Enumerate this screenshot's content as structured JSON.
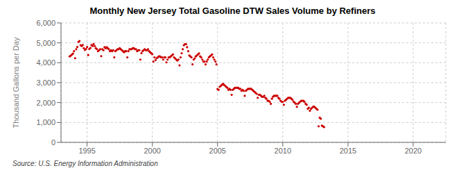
{
  "chart_data": {
    "type": "scatter",
    "title": "Monthly New Jersey Total Gasoline DTW Sales Volume by Refiners",
    "y_label": "Thousand Gallons per Day",
    "annotations": [
      "Source: U.S. Energy Information Administration"
    ],
    "color": "#cc0000",
    "marker": "circle",
    "grid": true,
    "xlim": [
      1993,
      2022.5
    ],
    "xticks": [
      1995,
      2000,
      2005,
      2010,
      2015,
      2020
    ],
    "ylim": [
      0,
      6000
    ],
    "yticks": [
      0,
      {
        "value": 1000,
        "label": "1,000"
      },
      {
        "value": 2000,
        "label": "2,000"
      },
      {
        "value": 3000,
        "label": "3,000"
      },
      {
        "value": 4000,
        "label": "4,000"
      },
      {
        "value": 5000,
        "label": "5,000"
      },
      {
        "value": 6000,
        "label": "6,000"
      }
    ],
    "x": [
      1993.6666666667,
      1993.75,
      1993.8333333333,
      1993.9166666667,
      1994,
      1994.0833333333,
      1994.1666666667,
      1994.25,
      1994.3333333333,
      1994.4166666667,
      1994.5,
      1994.5833333333,
      1994.6666666667,
      1994.75,
      1994.8333333333,
      1994.9166666667,
      1995,
      1995.0833333333,
      1995.1666666667,
      1995.25,
      1995.3333333333,
      1995.4166666667,
      1995.5,
      1995.5833333333,
      1995.6666666667,
      1995.75,
      1995.8333333333,
      1995.9166666667,
      1996,
      1996.0833333333,
      1996.1666666667,
      1996.25,
      1996.3333333333,
      1996.4166666667,
      1996.5,
      1996.5833333333,
      1996.6666666667,
      1996.75,
      1996.8333333333,
      1996.9166666667,
      1997,
      1997.0833333333,
      1997.1666666667,
      1997.25,
      1997.3333333333,
      1997.4166666667,
      1997.5,
      1997.5833333333,
      1997.6666666667,
      1997.75,
      1997.8333333333,
      1997.9166666667,
      1998,
      1998.0833333333,
      1998.1666666667,
      1998.25,
      1998.3333333333,
      1998.4166666667,
      1998.5,
      1998.5833333333,
      1998.6666666667,
      1998.75,
      1998.8333333333,
      1998.9166666667,
      1999,
      1999.0833333333,
      1999.1666666667,
      1999.25,
      1999.3333333333,
      1999.4166666667,
      1999.5,
      1999.5833333333,
      1999.6666666667,
      1999.75,
      1999.8333333333,
      1999.9166666667,
      2000,
      2000.0833333333,
      2000.1666666667,
      2000.25,
      2000.3333333333,
      2000.4166666667,
      2000.5,
      2000.5833333333,
      2000.6666666667,
      2000.75,
      2000.8333333333,
      2000.9166666667,
      2001,
      2001.0833333333,
      2001.1666666667,
      2001.25,
      2001.3333333333,
      2001.4166666667,
      2001.5,
      2001.5833333333,
      2001.6666666667,
      2001.75,
      2001.8333333333,
      2001.9166666667,
      2002,
      2002.0833333333,
      2002.1666666667,
      2002.25,
      2002.3333333333,
      2002.4166666667,
      2002.5,
      2002.5833333333,
      2002.6666666667,
      2002.75,
      2002.8333333333,
      2002.9166666667,
      2003,
      2003.0833333333,
      2003.1666666667,
      2003.25,
      2003.3333333333,
      2003.4166666667,
      2003.5,
      2003.5833333333,
      2003.6666666667,
      2003.75,
      2003.8333333333,
      2003.9166666667,
      2004,
      2004.0833333333,
      2004.1666666667,
      2004.25,
      2004.3333333333,
      2004.4166666667,
      2004.5,
      2004.5833333333,
      2004.6666666667,
      2004.75,
      2004.8333333333,
      2004.9166666667,
      2005,
      2005.0833333333,
      2005.1666666667,
      2005.25,
      2005.3333333333,
      2005.4166666667,
      2005.5,
      2005.5833333333,
      2005.6666666667,
      2005.75,
      2005.8333333333,
      2005.9166666667,
      2006,
      2006.0833333333,
      2006.1666666667,
      2006.25,
      2006.3333333333,
      2006.4166666667,
      2006.5,
      2006.5833333333,
      2006.6666666667,
      2006.75,
      2006.8333333333,
      2006.9166666667,
      2007,
      2007.0833333333,
      2007.1666666667,
      2007.25,
      2007.3333333333,
      2007.4166666667,
      2007.5,
      2007.5833333333,
      2007.6666666667,
      2007.75,
      2007.8333333333,
      2007.9166666667,
      2008,
      2008.0833333333,
      2008.1666666667,
      2008.25,
      2008.3333333333,
      2008.4166666667,
      2008.5,
      2008.5833333333,
      2008.6666666667,
      2008.75,
      2008.8333333333,
      2008.9166666667,
      2009,
      2009.0833333333,
      2009.1666666667,
      2009.25,
      2009.3333333333,
      2009.4166666667,
      2009.5,
      2009.5833333333,
      2009.6666666667,
      2009.75,
      2009.8333333333,
      2009.9166666667,
      2010,
      2010.0833333333,
      2010.1666666667,
      2010.25,
      2010.3333333333,
      2010.4166666667,
      2010.5,
      2010.5833333333,
      2010.6666666667,
      2010.75,
      2010.8333333333,
      2010.9166666667,
      2011,
      2011.0833333333,
      2011.1666666667,
      2011.25,
      2011.3333333333,
      2011.4166666667,
      2011.5,
      2011.5833333333,
      2011.6666666667,
      2011.75,
      2011.8333333333,
      2011.9166666667,
      2012,
      2012.0833333333,
      2012.1666666667,
      2012.25,
      2012.3333333333,
      2012.4166666667,
      2012.5,
      2012.5833333333,
      2012.6666666667,
      2012.75,
      2012.8333333333,
      2012.9166666667,
      2013,
      2013.0833333333,
      2013.1666666667
    ],
    "values": [
      4320,
      4360,
      4410,
      4460,
      4580,
      4230,
      4680,
      4790,
      5050,
      5090,
      4880,
      4840,
      4890,
      4730,
      4640,
      4690,
      4790,
      4390,
      4690,
      4740,
      4890,
      4840,
      4940,
      4840,
      4730,
      4690,
      4580,
      4630,
      4680,
      4330,
      4680,
      4630,
      4780,
      4730,
      4780,
      4730,
      4680,
      4580,
      4630,
      4580,
      4630,
      4270,
      4580,
      4630,
      4680,
      4680,
      4730,
      4680,
      4630,
      4580,
      4530,
      4580,
      4580,
      4270,
      4580,
      4680,
      4680,
      4680,
      4730,
      4730,
      4680,
      4680,
      4580,
      4630,
      4630,
      4160,
      4480,
      4580,
      4630,
      4680,
      4630,
      4630,
      4680,
      4580,
      4530,
      4480,
      4430,
      4060,
      4270,
      4130,
      4230,
      4270,
      4320,
      4320,
      4270,
      4270,
      4160,
      4270,
      4270,
      4020,
      4160,
      4270,
      4270,
      4320,
      4370,
      4420,
      4270,
      4220,
      4160,
      4110,
      4160,
      3870,
      4270,
      4480,
      4680,
      4880,
      4930,
      4930,
      4780,
      4580,
      4370,
      4320,
      4270,
      3920,
      4160,
      4220,
      4320,
      4370,
      4420,
      4470,
      4320,
      4270,
      4160,
      4060,
      4060,
      3920,
      4060,
      4160,
      4270,
      4320,
      4370,
      4420,
      4270,
      4160,
      4060,
      3920,
      2680,
      2640,
      2790,
      2840,
      2890,
      2940,
      2890,
      2840,
      2790,
      2740,
      2640,
      2690,
      2640,
      2390,
      2640,
      2690,
      2740,
      2740,
      2740,
      2740,
      2690,
      2690,
      2590,
      2640,
      2590,
      2340,
      2590,
      2640,
      2690,
      2690,
      2690,
      2690,
      2640,
      2590,
      2540,
      2490,
      2440,
      2240,
      2390,
      2390,
      2340,
      2290,
      2290,
      2340,
      2240,
      2190,
      2090,
      2090,
      2040,
      1940,
      2190,
      2290,
      2340,
      2340,
      2340,
      2340,
      2240,
      2190,
      2090,
      2040,
      2040,
      1890,
      2090,
      2140,
      2190,
      2240,
      2240,
      2240,
      2190,
      2140,
      2040,
      1990,
      1940,
      1790,
      1940,
      1990,
      2040,
      2090,
      2090,
      2090,
      2040,
      1940,
      1890,
      1690,
      1740,
      1590,
      1690,
      1740,
      1790,
      1790,
      1740,
      1690,
      1640,
      810,
      1240,
      1190,
      840,
      810,
      770
    ]
  }
}
